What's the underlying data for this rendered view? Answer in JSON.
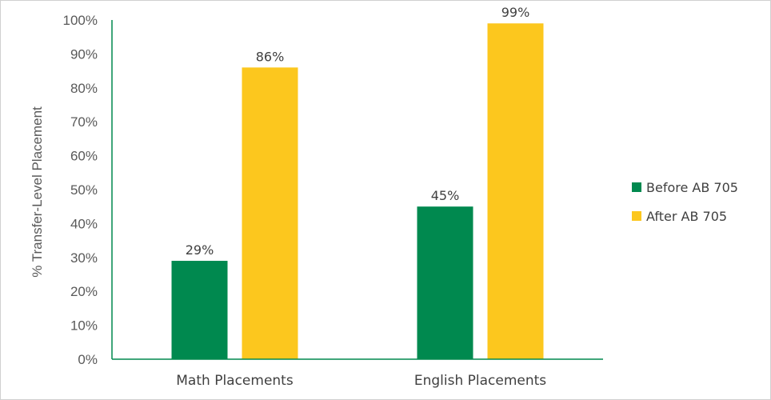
{
  "chart_data": {
    "type": "bar",
    "categories": [
      "Math Placements",
      "English Placements"
    ],
    "series": [
      {
        "name": "Before AB 705",
        "values": [
          29,
          45
        ],
        "labels": [
          "29%",
          "45%"
        ],
        "color": "#00894f"
      },
      {
        "name": "After AB 705",
        "values": [
          86,
          99
        ],
        "labels": [
          "86%",
          "99%"
        ],
        "color": "#fcc71e"
      }
    ],
    "ylabel": "% Transfer-Level Placement",
    "ylim": [
      0,
      100
    ],
    "yticks": [
      "0%",
      "10%",
      "20%",
      "30%",
      "40%",
      "50%",
      "60%",
      "70%",
      "80%",
      "90%",
      "100%"
    ],
    "grid": false,
    "legend": "right",
    "axis_color": "#00894f"
  }
}
